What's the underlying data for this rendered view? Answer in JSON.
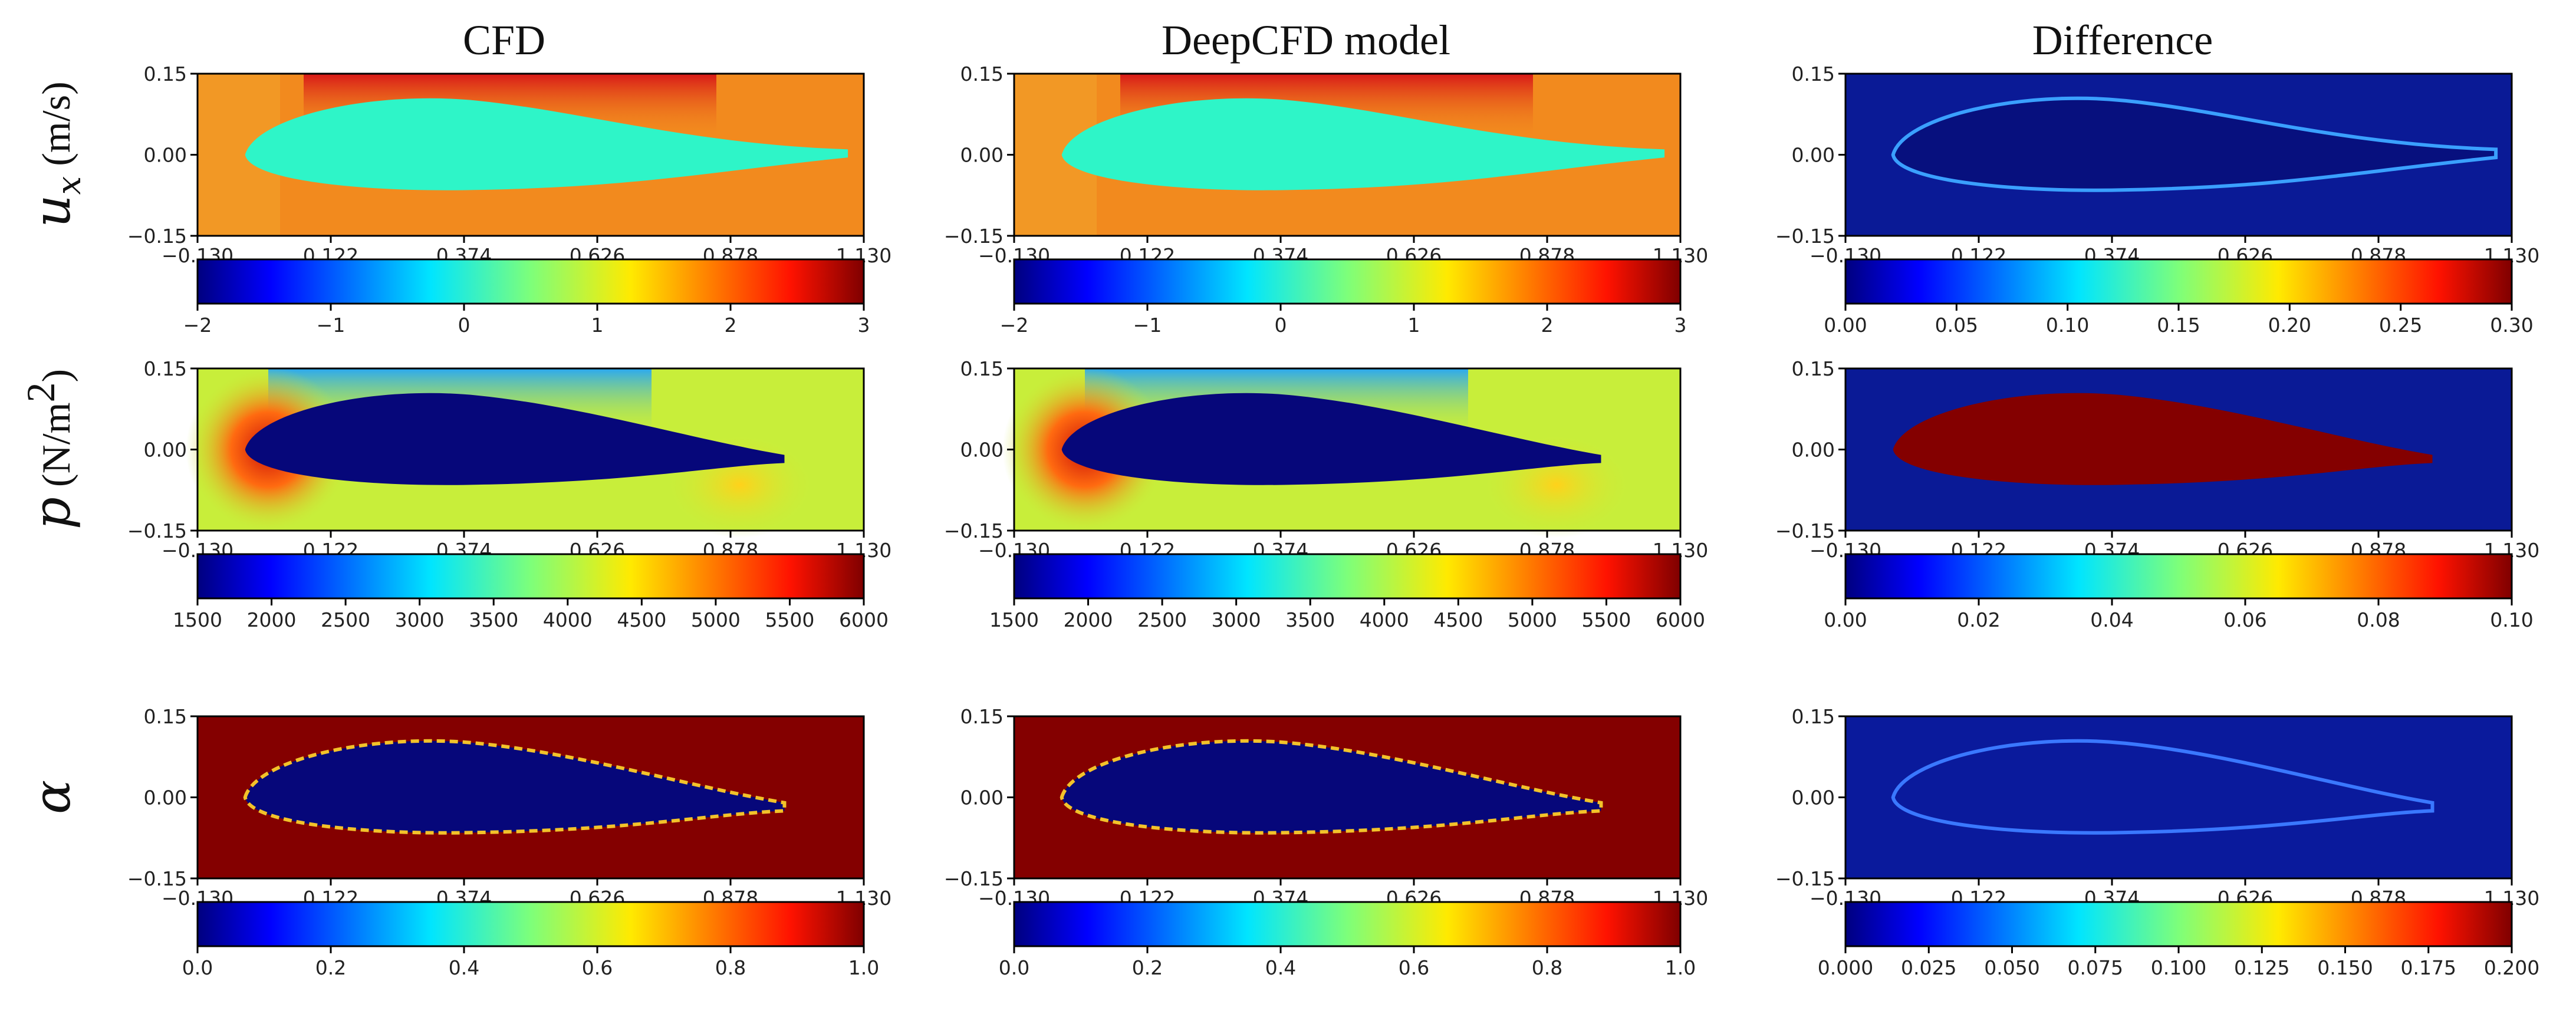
{
  "chart_data": {
    "type": "heatmap",
    "column_titles": [
      "CFD",
      "DeepCFD model",
      "Difference"
    ],
    "row_labels": [
      {
        "symbol": "u",
        "subscript": "x",
        "unit": " (m/s)"
      },
      {
        "symbol": "p",
        "subscript": "",
        "unit": " (N/m",
        "unit_sup": "2",
        "unit_end": ")"
      },
      {
        "symbol": "α",
        "subscript": "",
        "unit": ""
      }
    ],
    "x_ticks": [
      "−0.130",
      "0.122",
      "0.374",
      "0.626",
      "0.878",
      "1.130"
    ],
    "y_ticks": [
      "0.15",
      "0.00",
      "−0.15"
    ],
    "xlim": [
      -0.13,
      1.13
    ],
    "ylim": [
      -0.15,
      0.15
    ],
    "colormap": "jet",
    "colorbars": [
      [
        {
          "ticks": [
            "−2",
            "−1",
            "0",
            "1",
            "2",
            "3"
          ],
          "range": [
            -2,
            3
          ]
        },
        {
          "ticks": [
            "−2",
            "−1",
            "0",
            "1",
            "2",
            "3"
          ],
          "range": [
            -2,
            3
          ]
        },
        {
          "ticks": [
            "0.00",
            "0.05",
            "0.10",
            "0.15",
            "0.20",
            "0.25",
            "0.30"
          ],
          "range": [
            0,
            0.3
          ]
        }
      ],
      [
        {
          "ticks": [
            "1500",
            "2000",
            "2500",
            "3000",
            "3500",
            "4000",
            "4500",
            "5000",
            "5500",
            "6000"
          ],
          "range": [
            1500,
            6000
          ]
        },
        {
          "ticks": [
            "1500",
            "2000",
            "2500",
            "3000",
            "3500",
            "4000",
            "4500",
            "5000",
            "5500",
            "6000"
          ],
          "range": [
            1500,
            6000
          ]
        },
        {
          "ticks": [
            "0.00",
            "0.02",
            "0.04",
            "0.06",
            "0.08",
            "0.10"
          ],
          "range": [
            0,
            0.1
          ]
        }
      ],
      [
        {
          "ticks": [
            "0.0",
            "0.2",
            "0.4",
            "0.6",
            "0.8",
            "1.0"
          ],
          "range": [
            0,
            1
          ]
        },
        {
          "ticks": [
            "0.0",
            "0.2",
            "0.4",
            "0.6",
            "0.8",
            "1.0"
          ],
          "range": [
            0,
            1
          ]
        },
        {
          "ticks": [
            "0.000",
            "0.025",
            "0.050",
            "0.075",
            "0.100",
            "0.125",
            "0.150",
            "0.175",
            "0.200"
          ],
          "range": [
            0,
            0.2
          ]
        }
      ]
    ],
    "fields": {
      "ux_cfd": {
        "background": "#f28a1e",
        "body": "#2ef5c8",
        "top_band": "#e0221a"
      },
      "ux_model": {
        "background": "#f28a1e",
        "body": "#2ef5c8",
        "top_band": "#e0221a"
      },
      "ux_diff": {
        "background": "#0a1a96",
        "body": "#07107e",
        "outline": "#3aa0ff"
      },
      "p_cfd": {
        "background": "#c8ee3a",
        "body": "#06077a",
        "top_band": "#2aa8f2",
        "stagnation": "#cc1208"
      },
      "p_model": {
        "background": "#c8ee3a",
        "body": "#06077a",
        "top_band": "#2aa8f2",
        "stagnation": "#cc1208"
      },
      "p_diff": {
        "background": "#0a1a96",
        "body": "#840000"
      },
      "alpha_cfd": {
        "background": "#840000",
        "body": "#06077a",
        "outline": "#f2c22a"
      },
      "alpha_model": {
        "background": "#840000",
        "body": "#06077a",
        "outline": "#f2c22a"
      },
      "alpha_diff": {
        "background": "#0a1a9c",
        "body": "#0a1a9c",
        "outline": "#3a78ff"
      }
    }
  }
}
